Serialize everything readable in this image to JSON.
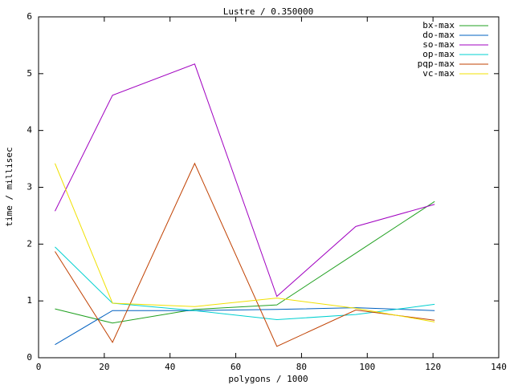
{
  "chart_data": {
    "type": "line",
    "title": "Lustre / 0.350000",
    "x_label": "polygons / 1000",
    "y_label": "time / millisec",
    "x": [
      5,
      22.5,
      47.5,
      72.5,
      96.5,
      120.5
    ],
    "series": [
      {
        "name": "bx-max",
        "color": "#20a020",
        "values": [
          0.86,
          0.61,
          0.85,
          0.93,
          1.84,
          2.75
        ]
      },
      {
        "name": "do-max",
        "color": "#0060c0",
        "values": [
          0.23,
          0.83,
          0.83,
          0.85,
          0.88,
          0.83
        ]
      },
      {
        "name": "so-max",
        "color": "#a000c0",
        "values": [
          2.58,
          4.62,
          5.17,
          1.08,
          2.31,
          2.7
        ]
      },
      {
        "name": "op-max",
        "color": "#00d0d0",
        "values": [
          1.95,
          0.96,
          0.83,
          0.67,
          0.76,
          0.94
        ]
      },
      {
        "name": "pqp-max",
        "color": "#c04000",
        "values": [
          1.87,
          0.27,
          3.42,
          0.2,
          0.84,
          0.66
        ]
      },
      {
        "name": "vc-max",
        "color": "#f0e000",
        "values": [
          3.42,
          0.96,
          0.9,
          1.05,
          0.87,
          0.63
        ]
      }
    ],
    "xlim": [
      0,
      140
    ],
    "xticks": [
      0,
      20,
      40,
      60,
      80,
      100,
      120,
      140
    ],
    "ylim": [
      0,
      6
    ],
    "yticks": [
      0,
      1,
      2,
      3,
      4,
      5,
      6
    ],
    "legend": "top-right"
  }
}
